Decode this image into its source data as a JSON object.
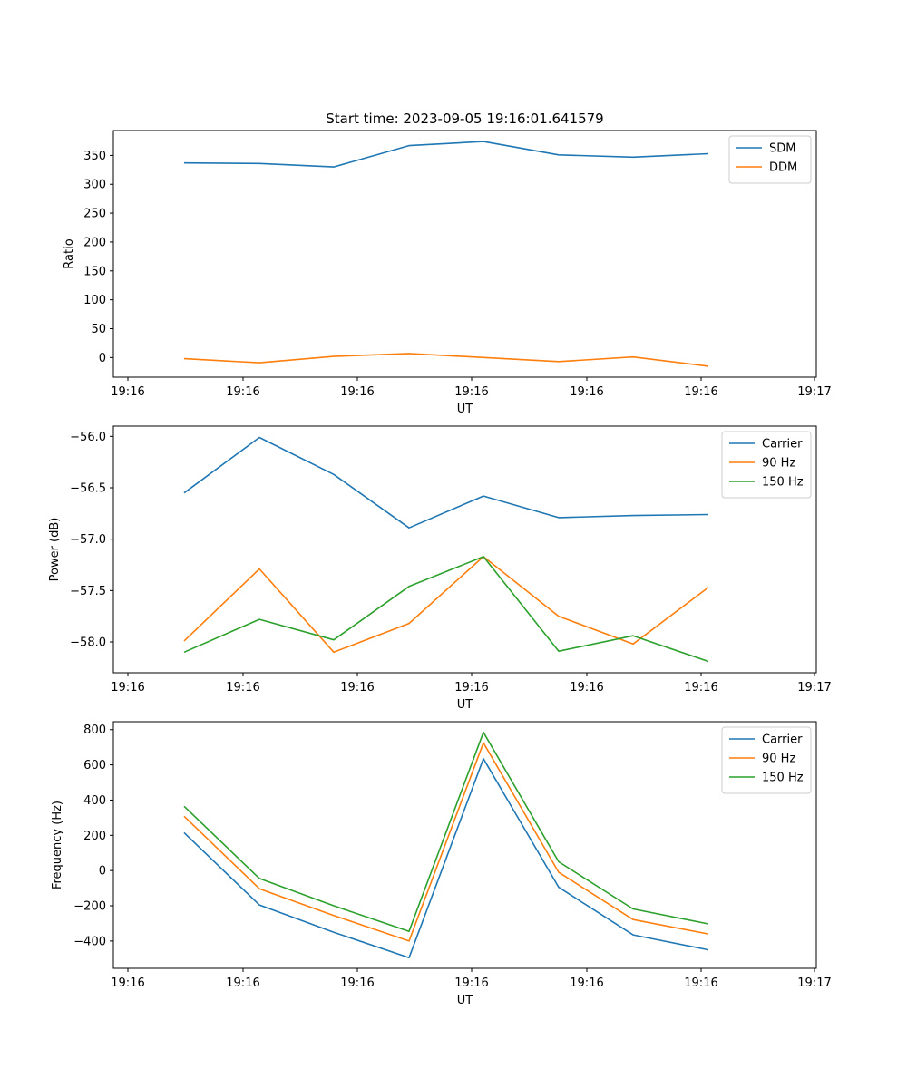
{
  "chart_data": [
    {
      "type": "line",
      "title": "Start time: 2023-09-05 19:16:01.641579",
      "xlabel": "UT",
      "ylabel": "Ratio",
      "x_ticks": [
        "19:16",
        "19:16",
        "19:16",
        "19:16",
        "19:16",
        "19:16",
        "19:17"
      ],
      "y_ticks": [
        0,
        50,
        100,
        150,
        200,
        250,
        300,
        350
      ],
      "ylim": [
        -34,
        393
      ],
      "legend_loc": "upper right",
      "series": [
        {
          "name": "SDM",
          "color": "#1f77b4",
          "values": [
            337,
            336,
            330,
            367,
            374,
            351,
            347,
            353
          ]
        },
        {
          "name": "DDM",
          "color": "#ff7f0e",
          "values": [
            -2,
            -9,
            2,
            7,
            0,
            -7,
            1,
            -15
          ]
        }
      ]
    },
    {
      "type": "line",
      "title": "",
      "xlabel": "UT",
      "ylabel": "Power (dB)",
      "x_ticks": [
        "19:16",
        "19:16",
        "19:16",
        "19:16",
        "19:16",
        "19:16",
        "19:17"
      ],
      "y_ticks": [
        -56.0,
        -56.5,
        -57.0,
        -57.5,
        -58.0
      ],
      "ylim": [
        -58.3,
        -55.9
      ],
      "legend_loc": "upper right",
      "series": [
        {
          "name": "Carrier",
          "color": "#1f77b4",
          "values": [
            -56.55,
            -56.01,
            -56.37,
            -56.89,
            -56.58,
            -56.79,
            -56.77,
            -56.76
          ]
        },
        {
          "name": "90 Hz",
          "color": "#ff7f0e",
          "values": [
            -57.99,
            -57.29,
            -58.1,
            -57.82,
            -57.17,
            -57.75,
            -58.02,
            -57.47
          ]
        },
        {
          "name": "150 Hz",
          "color": "#2ca02c",
          "values": [
            -58.1,
            -57.78,
            -57.98,
            -57.46,
            -57.17,
            -58.09,
            -57.94,
            -58.19
          ]
        }
      ]
    },
    {
      "type": "line",
      "title": "",
      "xlabel": "UT",
      "ylabel": "Frequency (Hz)",
      "x_ticks": [
        "19:16",
        "19:16",
        "19:16",
        "19:16",
        "19:16",
        "19:16",
        "19:17"
      ],
      "y_ticks": [
        -400,
        -200,
        0,
        200,
        400,
        600,
        800
      ],
      "ylim": [
        -555,
        845
      ],
      "legend_loc": "upper right",
      "series": [
        {
          "name": "Carrier",
          "color": "#1f77b4",
          "values": [
            215,
            -195,
            -350,
            -495,
            635,
            -95,
            -365,
            -450
          ]
        },
        {
          "name": "90 Hz",
          "color": "#ff7f0e",
          "values": [
            308,
            -103,
            -255,
            -400,
            725,
            -10,
            -278,
            -360
          ]
        },
        {
          "name": "150 Hz",
          "color": "#2ca02c",
          "values": [
            365,
            -45,
            -200,
            -345,
            785,
            50,
            -218,
            -303
          ]
        }
      ]
    }
  ]
}
